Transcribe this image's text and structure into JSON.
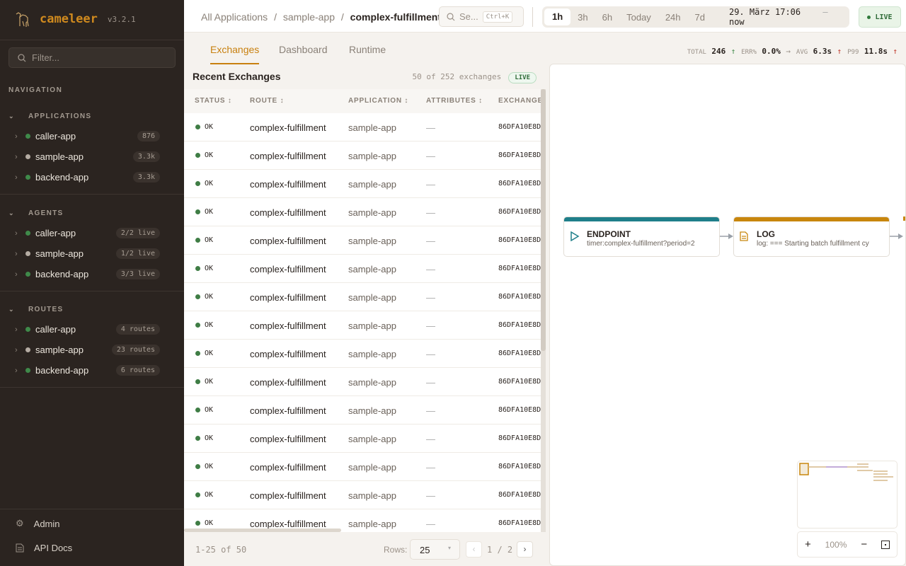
{
  "brand": {
    "name": "cameleer",
    "version": "v3.2.1"
  },
  "sidebar": {
    "filter_placeholder": "Filter...",
    "nav_heading": "NAVIGATION",
    "sections": [
      {
        "title": "APPLICATIONS",
        "items": [
          {
            "label": "caller-app",
            "badge": "876",
            "status": "green"
          },
          {
            "label": "sample-app",
            "badge": "3.3k",
            "status": "gray"
          },
          {
            "label": "backend-app",
            "badge": "3.3k",
            "status": "green"
          }
        ]
      },
      {
        "title": "AGENTS",
        "items": [
          {
            "label": "caller-app",
            "badge": "2/2 live",
            "status": "green"
          },
          {
            "label": "sample-app",
            "badge": "1/2 live",
            "status": "gray"
          },
          {
            "label": "backend-app",
            "badge": "3/3 live",
            "status": "green"
          }
        ]
      },
      {
        "title": "ROUTES",
        "items": [
          {
            "label": "caller-app",
            "badge": "4 routes",
            "status": "green"
          },
          {
            "label": "sample-app",
            "badge": "23 routes",
            "status": "gray"
          },
          {
            "label": "backend-app",
            "badge": "6 routes",
            "status": "green"
          }
        ]
      }
    ],
    "footer": {
      "admin": "Admin",
      "api_docs": "API Docs"
    }
  },
  "colors": {
    "green": "#3f8a4a",
    "gray": "#b5aca3",
    "accent": "#c8800f",
    "endpoint": "#1f7f8a",
    "log": "#c8860d"
  },
  "header": {
    "breadcrumb": [
      "All Applications",
      "sample-app",
      "complex-fulfillment"
    ],
    "breadcrumb_sep": "/",
    "search_placeholder": "Se...",
    "search_shortcut": "Ctrl+K",
    "ranges": [
      "1h",
      "3h",
      "6h",
      "Today",
      "24h",
      "7d"
    ],
    "active_range": "1h",
    "range_from": "29. März 17:06",
    "range_dash": "—",
    "range_to": "now",
    "live": "LIVE"
  },
  "tabs": [
    "Exchanges",
    "Dashboard",
    "Runtime"
  ],
  "active_tab": "Exchanges",
  "kpis": [
    {
      "label": "TOTAL",
      "value": "246",
      "trend": "↑",
      "color": "#3f8a4a"
    },
    {
      "label": "ERR%",
      "value": "0.0%",
      "trend": "→",
      "color": "#9b9289"
    },
    {
      "label": "AVG",
      "value": "6.3s",
      "trend": "↑",
      "color": "#c0392b"
    },
    {
      "label": "P99",
      "value": "11.8s",
      "trend": "↑",
      "color": "#c0392b"
    }
  ],
  "exchanges": {
    "title": "Recent Exchanges",
    "count": "50 of 252 exchanges",
    "live": "LIVE",
    "columns": [
      "STATUS",
      "ROUTE",
      "APPLICATION",
      "ATTRIBUTES",
      "EXCHANGE"
    ],
    "rows": [
      {
        "status": "OK",
        "route": "complex-fulfillment",
        "application": "sample-app",
        "attributes": "—",
        "exchange": "86DFA10E8D"
      },
      {
        "status": "OK",
        "route": "complex-fulfillment",
        "application": "sample-app",
        "attributes": "—",
        "exchange": "86DFA10E8D"
      },
      {
        "status": "OK",
        "route": "complex-fulfillment",
        "application": "sample-app",
        "attributes": "—",
        "exchange": "86DFA10E8D"
      },
      {
        "status": "OK",
        "route": "complex-fulfillment",
        "application": "sample-app",
        "attributes": "—",
        "exchange": "86DFA10E8D"
      },
      {
        "status": "OK",
        "route": "complex-fulfillment",
        "application": "sample-app",
        "attributes": "—",
        "exchange": "86DFA10E8D"
      },
      {
        "status": "OK",
        "route": "complex-fulfillment",
        "application": "sample-app",
        "attributes": "—",
        "exchange": "86DFA10E8D"
      },
      {
        "status": "OK",
        "route": "complex-fulfillment",
        "application": "sample-app",
        "attributes": "—",
        "exchange": "86DFA10E8D"
      },
      {
        "status": "OK",
        "route": "complex-fulfillment",
        "application": "sample-app",
        "attributes": "—",
        "exchange": "86DFA10E8D"
      },
      {
        "status": "OK",
        "route": "complex-fulfillment",
        "application": "sample-app",
        "attributes": "—",
        "exchange": "86DFA10E8D"
      },
      {
        "status": "OK",
        "route": "complex-fulfillment",
        "application": "sample-app",
        "attributes": "—",
        "exchange": "86DFA10E8D"
      },
      {
        "status": "OK",
        "route": "complex-fulfillment",
        "application": "sample-app",
        "attributes": "—",
        "exchange": "86DFA10E8D"
      },
      {
        "status": "OK",
        "route": "complex-fulfillment",
        "application": "sample-app",
        "attributes": "—",
        "exchange": "86DFA10E8D"
      },
      {
        "status": "OK",
        "route": "complex-fulfillment",
        "application": "sample-app",
        "attributes": "—",
        "exchange": "86DFA10E8D"
      },
      {
        "status": "OK",
        "route": "complex-fulfillment",
        "application": "sample-app",
        "attributes": "—",
        "exchange": "86DFA10E8D"
      },
      {
        "status": "OK",
        "route": "complex-fulfillment",
        "application": "sample-app",
        "attributes": "—",
        "exchange": "86DFA10E8D"
      }
    ],
    "pagination": {
      "range": "1-25 of 50",
      "rows_label": "Rows:",
      "rows_value": "25",
      "page": "1 / 2"
    }
  },
  "diagram": {
    "nodes": [
      {
        "type": "ENDPOINT",
        "detail": "timer:complex-fulfillment?period=2"
      },
      {
        "type": "LOG",
        "detail": "log: === Starting batch fulfillment cy"
      }
    ],
    "zoom": "100%"
  }
}
